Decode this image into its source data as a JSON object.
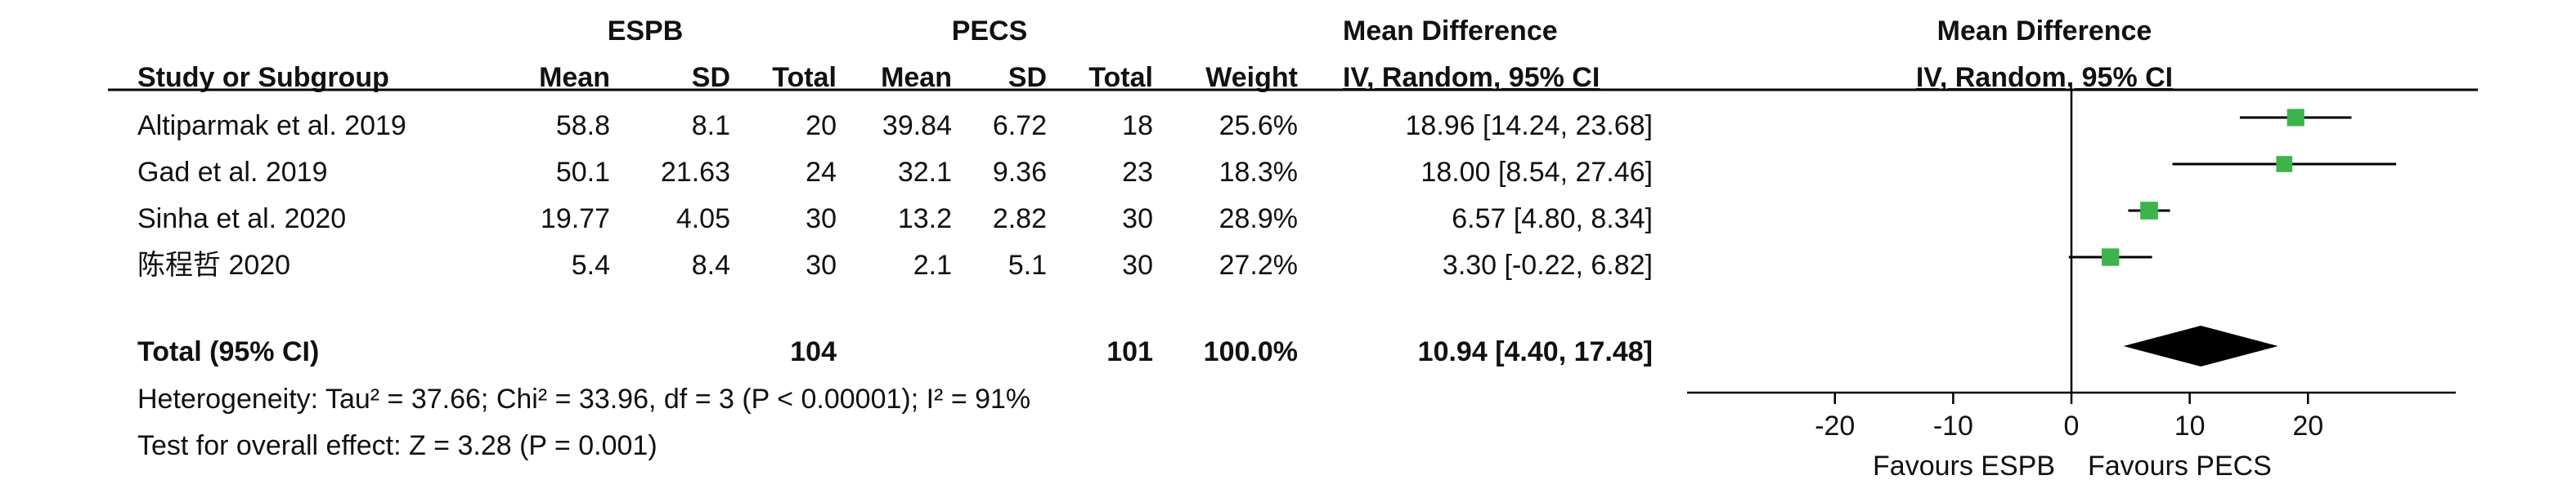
{
  "chart_data": {
    "type": "forest",
    "group_headers": {
      "experimental": "ESPB",
      "control": "PECS",
      "effect_table": "Mean Difference",
      "effect_plot": "Mean Difference"
    },
    "columns": {
      "study": "Study or Subgroup",
      "mean_e": "Mean",
      "sd_e": "SD",
      "total_e": "Total",
      "mean_c": "Mean",
      "sd_c": "SD",
      "total_c": "Total",
      "weight": "Weight",
      "effect": "IV, Random, 95% CI",
      "plot_method": "IV, Random, 95% CI"
    },
    "studies": [
      {
        "name": "Altiparmak et al. 2019",
        "mean_e": "58.8",
        "sd_e": "8.1",
        "total_e": "20",
        "mean_c": "39.84",
        "sd_c": "6.72",
        "total_c": "18",
        "weight": "25.6%",
        "ci_text": "18.96 [14.24, 23.68]",
        "md": 18.96,
        "lo": 14.24,
        "hi": 23.68,
        "w": 25.6
      },
      {
        "name": "Gad et al. 2019",
        "mean_e": "50.1",
        "sd_e": "21.63",
        "total_e": "24",
        "mean_c": "32.1",
        "sd_c": "9.36",
        "total_c": "23",
        "weight": "18.3%",
        "ci_text": "18.00 [8.54, 27.46]",
        "md": 18.0,
        "lo": 8.54,
        "hi": 27.46,
        "w": 18.3
      },
      {
        "name": "Sinha et al. 2020",
        "mean_e": "19.77",
        "sd_e": "4.05",
        "total_e": "30",
        "mean_c": "13.2",
        "sd_c": "2.82",
        "total_c": "30",
        "weight": "28.9%",
        "ci_text": "6.57 [4.80, 8.34]",
        "md": 6.57,
        "lo": 4.8,
        "hi": 8.34,
        "w": 28.9
      },
      {
        "name": "陈程哲 2020",
        "mean_e": "5.4",
        "sd_e": "8.4",
        "total_e": "30",
        "mean_c": "2.1",
        "sd_c": "5.1",
        "total_c": "30",
        "weight": "27.2%",
        "ci_text": "3.30 [-0.22, 6.82]",
        "md": 3.3,
        "lo": -0.22,
        "hi": 6.82,
        "w": 27.2
      }
    ],
    "total": {
      "label": "Total (95% CI)",
      "total_e": "104",
      "total_c": "101",
      "weight": "100.0%",
      "ci_text": "10.94 [4.40, 17.48]",
      "md": 10.94,
      "lo": 4.4,
      "hi": 17.48
    },
    "heterogeneity": "Heterogeneity: Tau² = 37.66; Chi² = 33.96, df = 3 (P < 0.00001); I² = 91%",
    "overall_effect": "Test for overall effect: Z = 3.28 (P = 0.001)",
    "axis": {
      "min": -32.5,
      "max": 32.5,
      "ticks": [
        -20,
        -10,
        0,
        10,
        20
      ],
      "tick_labels": [
        "-20",
        "-10",
        "0",
        "10",
        "20"
      ],
      "favours_left": "Favours ESPB",
      "favours_right": "Favours PECS"
    },
    "colors": {
      "study_marker": "#3cb44b",
      "diamond": "#000000",
      "lines": "#000000"
    }
  }
}
